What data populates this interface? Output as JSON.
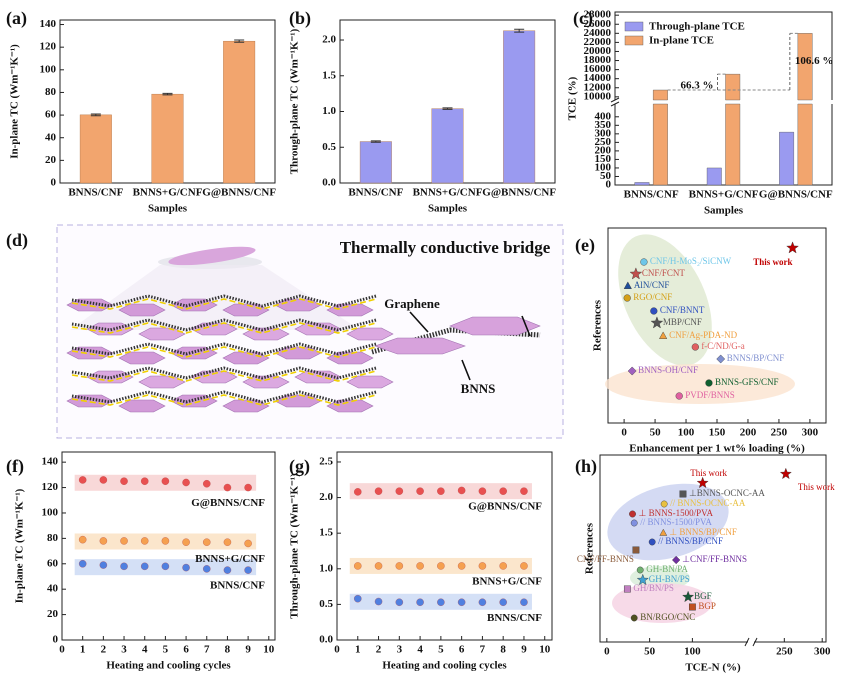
{
  "chart_data": [
    {
      "panel": "(a)",
      "type": "bar",
      "categories": [
        "BNNS/CNF",
        "BNNS+G/CNF",
        "G@BNNS/CNF"
      ],
      "values": [
        60.2,
        78.5,
        125.3
      ],
      "errors": [
        0.8,
        0.7,
        1.0
      ],
      "color": "#f2a56e",
      "ylabel": "In-plane TC (Wm⁻¹K⁻¹)",
      "xlabel": "Samples",
      "ylim": [
        0,
        144
      ],
      "yticks": [
        0,
        20,
        40,
        60,
        80,
        100,
        120,
        140
      ]
    },
    {
      "panel": "(b)",
      "type": "bar",
      "categories": [
        "BNNS/CNF",
        "BNNS+G/CNF",
        "G@BNNS/CNF"
      ],
      "values": [
        0.58,
        1.04,
        2.13
      ],
      "errors": [
        0.01,
        0.01,
        0.02
      ],
      "color": "#9a9af0",
      "ylabel": "Through-plane TC (Wm⁻¹K⁻¹)",
      "xlabel": "Samples",
      "ylim": [
        0,
        2.28
      ],
      "yticks": [
        {
          "value": 0,
          "label": "0.0"
        },
        0.5,
        {
          "value": 1,
          "label": "1.0"
        },
        1.5,
        {
          "value": 2,
          "label": "2.0"
        }
      ]
    },
    {
      "panel": "(c)",
      "type": "broken_bar",
      "categories": [
        "BNNS/CNF",
        "BNNS+G/CNF",
        "G@BNNS/CNF"
      ],
      "series": [
        {
          "name": "Through-plane TCE",
          "color": "#9a9af0",
          "values": [
            15,
            100,
            310
          ]
        },
        {
          "name": "In-plane TCE",
          "color": "#f2a56e",
          "values": [
            11500,
            15000,
            24000
          ]
        }
      ],
      "ylabel": "TCE (%)",
      "xlabel": "Samples",
      "ylim_segments": [
        [
          0,
          475
        ],
        [
          9300,
          28700
        ]
      ],
      "yticks": [
        0,
        50,
        100,
        150,
        200,
        250,
        300,
        350,
        400,
        10000,
        12000,
        14000,
        16000,
        18000,
        20000,
        22000,
        24000,
        26000,
        28000
      ],
      "annotations": [
        "66.3 %",
        "106.6 %"
      ]
    },
    {
      "panel": "(e)",
      "type": "labeled_scatter",
      "xlabel": "Enhancement per 1 wt% loading (%)",
      "ylabel": "References",
      "xlim": [
        -26,
        326
      ],
      "xticks": [
        0,
        50,
        100,
        150,
        200,
        250,
        300
      ],
      "points": [
        {
          "label": "This work",
          "x": 272,
          "color": "#c00000",
          "marker": "star"
        },
        {
          "label": "CNF/H-MoS₂/SiCNW",
          "x": 32,
          "color": "#6ec6e8",
          "marker": "circle"
        },
        {
          "label": "CNF/FCNT",
          "x": 19,
          "color": "#c0504d",
          "marker": "star"
        },
        {
          "label": "AlN/CNF",
          "x": 6,
          "color": "#1f4e9a",
          "marker": "triangle"
        },
        {
          "label": "RGO/CNF",
          "x": 5,
          "color": "#d4a017",
          "marker": "circle"
        },
        {
          "label": "CNF/BNNT",
          "x": 48,
          "color": "#3050c0",
          "marker": "circle"
        },
        {
          "label": "MBP/CNF",
          "x": 53,
          "color": "#555555",
          "marker": "star"
        },
        {
          "label": "CNF/Ag-PDA-ND",
          "x": 63,
          "color": "#f0a040",
          "marker": "triangle"
        },
        {
          "label": "f-C/ND/G-a",
          "x": 115,
          "color": "#e06060",
          "marker": "circle"
        },
        {
          "label": "BNNS/BP/CNF",
          "x": 156,
          "color": "#8090d0",
          "marker": "diamond"
        },
        {
          "label": "BNNS-OH/CNF",
          "x": 13,
          "color": "#a060c0",
          "marker": "diamond"
        },
        {
          "label": "BNNS-GFS/CNF",
          "x": 137,
          "color": "#106030",
          "marker": "circle"
        },
        {
          "label": "PVDF/BNNS",
          "x": 89,
          "color": "#e060a0",
          "marker": "circle"
        }
      ]
    },
    {
      "panel": "(f)",
      "type": "scatter",
      "xlabel": "Heating and cooling cycles",
      "ylabel": "In-plane TC (Wm⁻¹K⁻¹)",
      "x": [
        1,
        2,
        3,
        4,
        5,
        6,
        7,
        8,
        9
      ],
      "series": [
        {
          "name": "G@BNNS/CNF",
          "color": "#e85050",
          "band": "#f8d8d8",
          "values": [
            126,
            126,
            125,
            125,
            125,
            124,
            123,
            120,
            120
          ]
        },
        {
          "name": "BNNS+G/CNF",
          "color": "#f5a050",
          "band": "#fbe6cc",
          "values": [
            79,
            78,
            78,
            78,
            78,
            77,
            77,
            77,
            76
          ]
        },
        {
          "name": "BNNS/CNF",
          "color": "#5080e0",
          "band": "#d4e0f6",
          "values": [
            60,
            59,
            58,
            58,
            58,
            57,
            56,
            55,
            55
          ]
        }
      ],
      "xlim": [
        0,
        10.3
      ],
      "xticks": [
        0,
        1,
        2,
        3,
        4,
        5,
        6,
        7,
        8,
        9,
        10
      ],
      "ylim": [
        0,
        148
      ],
      "yticks": [
        0,
        20,
        40,
        60,
        80,
        100,
        120,
        140
      ]
    },
    {
      "panel": "(g)",
      "type": "scatter",
      "xlabel": "Heating and cooling cycles",
      "ylabel": "Through-plane TC (Wm⁻¹K⁻¹)",
      "x": [
        1,
        2,
        3,
        4,
        5,
        6,
        7,
        8,
        9
      ],
      "series": [
        {
          "name": "G@BNNS/CNF",
          "color": "#e85050",
          "band": "#f8d8d8",
          "values": [
            2.08,
            2.09,
            2.09,
            2.09,
            2.09,
            2.1,
            2.09,
            2.09,
            2.09
          ]
        },
        {
          "name": "BNNS+G/CNF",
          "color": "#f5a050",
          "band": "#fbe6cc",
          "values": [
            1.04,
            1.04,
            1.04,
            1.04,
            1.04,
            1.04,
            1.04,
            1.04,
            1.04
          ]
        },
        {
          "name": "BNNS/CNF",
          "color": "#5080e0",
          "band": "#d4e0f6",
          "values": [
            0.58,
            0.54,
            0.53,
            0.53,
            0.53,
            0.53,
            0.53,
            0.53,
            0.53
          ]
        }
      ],
      "xlim": [
        0,
        10.35
      ],
      "xticks": [
        0,
        1,
        2,
        3,
        4,
        5,
        6,
        7,
        8,
        9,
        10
      ],
      "ylim": [
        0,
        2.64
      ],
      "yticks": [
        {
          "value": 0,
          "label": "0.0"
        },
        0.5,
        {
          "value": 1,
          "label": "1.0"
        },
        1.5,
        {
          "value": 2,
          "label": "2.0"
        },
        2.5
      ]
    },
    {
      "panel": "(h)",
      "type": "broken_labeled_scatter",
      "xlabel": "TCE-N (%)",
      "ylabel": "References",
      "xlim_segments": [
        [
          -8,
          165
        ],
        [
          210,
          305
        ]
      ],
      "xticks": [
        0,
        50,
        100,
        250,
        300
      ],
      "points": [
        {
          "label": "This work",
          "x": 112,
          "color": "#c00000",
          "marker": "star"
        },
        {
          "label": "This work",
          "x": 252,
          "color": "#c00000",
          "marker": "star"
        },
        {
          "label": "⊥BNNS-OCNC-AA",
          "x": 89,
          "color": "#555555",
          "marker": "square"
        },
        {
          "label": "// BNNS-OCNC-AA",
          "x": 67,
          "color": "#e8c040",
          "marker": "circle"
        },
        {
          "label": "⊥ BNNS-1500/PVA",
          "x": 30,
          "color": "#c03030",
          "marker": "circle"
        },
        {
          "label": "// BNNS-1500/PVA",
          "x": 32,
          "color": "#8090e0",
          "marker": "circle"
        },
        {
          "label": "⊥ BNNS/BP/CNF",
          "x": 66,
          "color": "#f0a040",
          "marker": "triangle"
        },
        {
          "label": "// BNNS/BP/CNF",
          "x": 53,
          "color": "#3050c0",
          "marker": "circle"
        },
        {
          "label": "CNF/FF-BNNS",
          "x": 34,
          "color": "#8a5a3a",
          "marker": "square"
        },
        {
          "label": "⊥CNF/FF-BNNS",
          "x": 81,
          "color": "#7030a0",
          "marker": "diamond"
        },
        {
          "label": "GH-BN/PA",
          "x": 39,
          "color": "#70b070",
          "marker": "circle"
        },
        {
          "label": "GH-BN/PS",
          "x": 42,
          "color": "#40a0d0",
          "marker": "star"
        },
        {
          "label": "GH/BN/PS",
          "x": 24,
          "color": "#c080c0",
          "marker": "square"
        },
        {
          "label": "BGF",
          "x": 95,
          "color": "#1a5a3a",
          "marker": "star"
        },
        {
          "label": "BGP",
          "x": 100,
          "color": "#c05020",
          "marker": "square"
        },
        {
          "label": "BN/RGO/CNC",
          "x": 32,
          "color": "#505020",
          "marker": "circle"
        }
      ]
    }
  ],
  "diagram": {
    "panel": "(d)",
    "title": "Thermally conductive bridge",
    "labels": [
      "Graphene",
      "BNNS"
    ]
  }
}
